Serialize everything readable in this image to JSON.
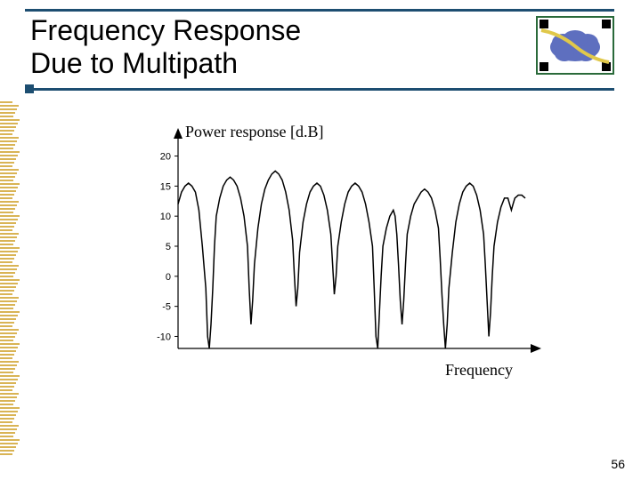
{
  "slide": {
    "title_line1": "Frequency Response",
    "title_line2": "Due to Multipath",
    "page_number": "56",
    "rule_color": "#1d4e71",
    "mini_square_color": "#1d4e71",
    "left_bar_color": "#d9b455"
  },
  "icon": {
    "border_color": "#2a6a3a",
    "cloud_color": "#5e6fbf",
    "wave_color": "#e0c84a",
    "corner_color": "#000000"
  },
  "chart": {
    "type": "line",
    "y_axis_title": "Power response [d.B]",
    "x_axis_title": "Frequency",
    "ylim": [
      -12,
      22
    ],
    "yticks": [
      -10,
      -5,
      0,
      5,
      10,
      15,
      20
    ],
    "ytick_labels": [
      "-10",
      "-5",
      "0",
      "5",
      "10",
      "15",
      "20"
    ],
    "xlim": [
      0,
      100
    ],
    "line_color": "#000000",
    "line_width": 1.5,
    "axis_color": "#000000",
    "tick_fontsize": 11,
    "title_fontsize": 18,
    "background_color": "#ffffff",
    "data": [
      [
        0,
        12
      ],
      [
        1,
        14
      ],
      [
        2,
        15
      ],
      [
        3,
        15.5
      ],
      [
        4,
        15
      ],
      [
        5,
        14
      ],
      [
        6,
        11
      ],
      [
        7,
        5
      ],
      [
        8,
        -2
      ],
      [
        8.5,
        -10
      ],
      [
        9,
        -12
      ],
      [
        9.5,
        -8
      ],
      [
        10,
        -2
      ],
      [
        10.5,
        5
      ],
      [
        11,
        10
      ],
      [
        12,
        13
      ],
      [
        13,
        15
      ],
      [
        14,
        16
      ],
      [
        15,
        16.5
      ],
      [
        16,
        16
      ],
      [
        17,
        15
      ],
      [
        18,
        13
      ],
      [
        19,
        10
      ],
      [
        20,
        5
      ],
      [
        20.5,
        -2
      ],
      [
        21,
        -8
      ],
      [
        21.5,
        -4
      ],
      [
        22,
        2
      ],
      [
        23,
        8
      ],
      [
        24,
        12
      ],
      [
        25,
        14.5
      ],
      [
        26,
        16
      ],
      [
        27,
        17
      ],
      [
        28,
        17.5
      ],
      [
        29,
        17
      ],
      [
        30,
        16
      ],
      [
        31,
        14
      ],
      [
        32,
        11
      ],
      [
        33,
        6
      ],
      [
        33.5,
        0
      ],
      [
        34,
        -5
      ],
      [
        34.5,
        -2
      ],
      [
        35,
        4
      ],
      [
        36,
        9
      ],
      [
        37,
        12
      ],
      [
        38,
        14
      ],
      [
        39,
        15
      ],
      [
        40,
        15.5
      ],
      [
        41,
        15
      ],
      [
        42,
        13.5
      ],
      [
        43,
        11
      ],
      [
        44,
        7
      ],
      [
        44.5,
        2
      ],
      [
        45,
        -3
      ],
      [
        45.5,
        0
      ],
      [
        46,
        5
      ],
      [
        47,
        9
      ],
      [
        48,
        12
      ],
      [
        49,
        14
      ],
      [
        50,
        15
      ],
      [
        51,
        15.5
      ],
      [
        52,
        15
      ],
      [
        53,
        14
      ],
      [
        54,
        12
      ],
      [
        55,
        9
      ],
      [
        56,
        5
      ],
      [
        56.5,
        -2
      ],
      [
        57,
        -10
      ],
      [
        57.5,
        -12
      ],
      [
        58,
        -6
      ],
      [
        58.5,
        0
      ],
      [
        59,
        5
      ],
      [
        60,
        8
      ],
      [
        61,
        10
      ],
      [
        62,
        11
      ],
      [
        62.5,
        10
      ],
      [
        63,
        7
      ],
      [
        63.5,
        2
      ],
      [
        64,
        -4
      ],
      [
        64.5,
        -8
      ],
      [
        65,
        -4
      ],
      [
        65.5,
        2
      ],
      [
        66,
        7
      ],
      [
        67,
        10
      ],
      [
        68,
        12
      ],
      [
        69,
        13
      ],
      [
        70,
        14
      ],
      [
        71,
        14.5
      ],
      [
        72,
        14
      ],
      [
        73,
        13
      ],
      [
        74,
        11
      ],
      [
        75,
        8
      ],
      [
        75.5,
        3
      ],
      [
        76,
        -3
      ],
      [
        76.5,
        -8
      ],
      [
        77,
        -12
      ],
      [
        77.5,
        -8
      ],
      [
        78,
        -2
      ],
      [
        79,
        4
      ],
      [
        80,
        9
      ],
      [
        81,
        12
      ],
      [
        82,
        14
      ],
      [
        83,
        15
      ],
      [
        84,
        15.5
      ],
      [
        85,
        15
      ],
      [
        86,
        13.5
      ],
      [
        87,
        11
      ],
      [
        88,
        7
      ],
      [
        88.5,
        2
      ],
      [
        89,
        -4
      ],
      [
        89.5,
        -10
      ],
      [
        90,
        -6
      ],
      [
        90.5,
        0
      ],
      [
        91,
        5
      ],
      [
        92,
        9
      ],
      [
        93,
        11.5
      ],
      [
        94,
        13
      ],
      [
        95,
        13
      ],
      [
        95.5,
        12
      ],
      [
        96,
        11
      ],
      [
        96.5,
        12
      ],
      [
        97,
        13
      ],
      [
        98,
        13.5
      ],
      [
        99,
        13.5
      ],
      [
        100,
        13
      ]
    ]
  }
}
